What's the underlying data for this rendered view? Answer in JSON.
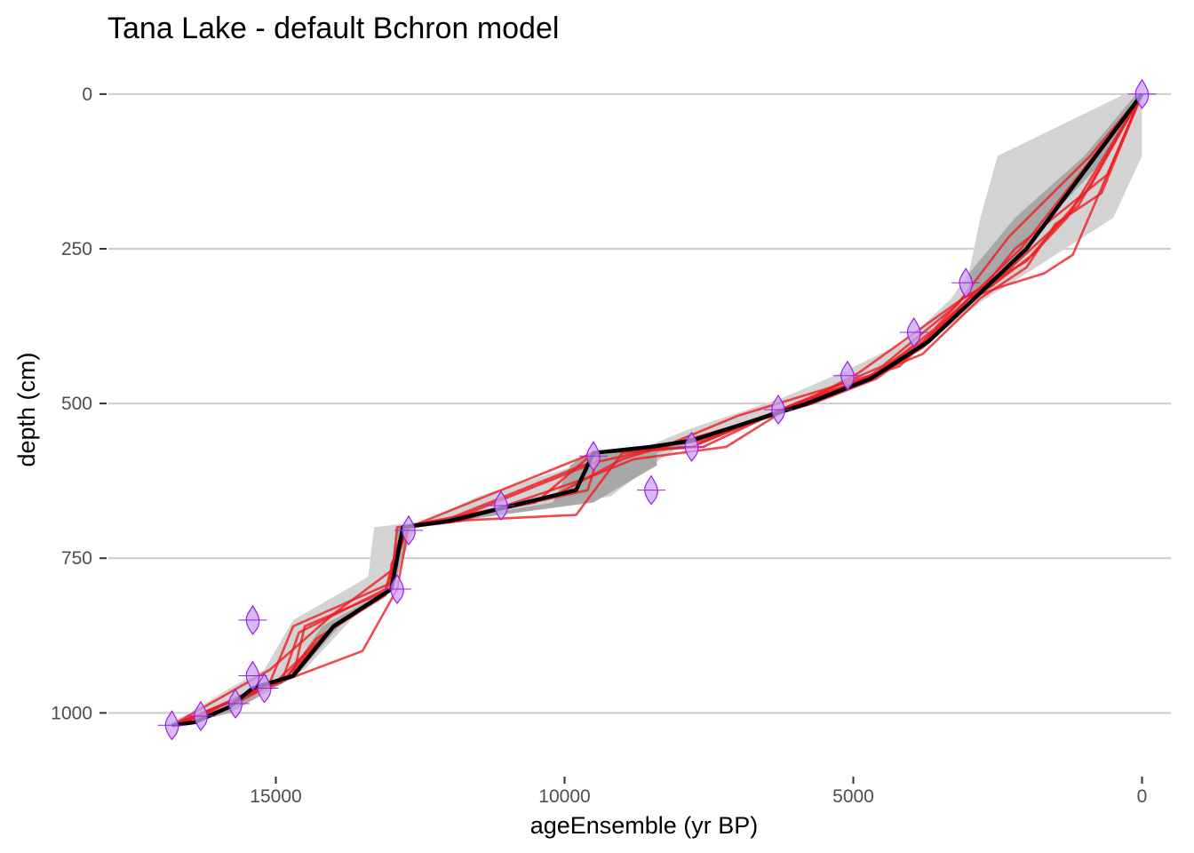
{
  "chart_data": {
    "type": "line",
    "title": "Tana Lake - default Bchron model",
    "xlabel": "ageEnsemble (yr BP)",
    "ylabel": "depth (cm)",
    "x_reversed": true,
    "y_reversed": true,
    "xlim": [
      17900,
      -500
    ],
    "ylim": [
      1100,
      -40
    ],
    "x_ticks": [
      15000,
      10000,
      5000,
      0
    ],
    "y_ticks": [
      0,
      250,
      500,
      750,
      1000
    ],
    "x_tick_labels": [
      "15000",
      "10000",
      "5000",
      "0"
    ],
    "y_tick_labels": [
      "0",
      "250",
      "500",
      "750",
      "1000"
    ],
    "grid": "horizontal major lines",
    "colors": {
      "outer_band": "#d3d3d3",
      "inner_band": "#a8a8a8",
      "median": "#000000",
      "ensemble": "#ee1c22",
      "calibrated_dates_fill": "#c9a2f2",
      "calibrated_dates_line": "#9a1ee6",
      "grid": "#cccccc",
      "tick_label": "#4d4d4d"
    },
    "median": {
      "depth": [
        0,
        100,
        250,
        330,
        400,
        460,
        500,
        560,
        570,
        580,
        640,
        690,
        700,
        800,
        860,
        940,
        960,
        990,
        1015,
        1020
      ],
      "age": [
        0,
        800,
        2000,
        2900,
        3700,
        4700,
        5800,
        7800,
        8500,
        9500,
        9800,
        12000,
        12800,
        13000,
        14000,
        14700,
        15400,
        15800,
        16400,
        16800
      ]
    },
    "range_95": {
      "depth": [
        0,
        100,
        200,
        290,
        330,
        400,
        450,
        490,
        540,
        570,
        600,
        650,
        690,
        700,
        780,
        850,
        930,
        960,
        1000,
        1020
      ],
      "age_young": [
        0,
        0,
        500,
        2000,
        2700,
        3700,
        4700,
        5800,
        7000,
        8000,
        8500,
        9200,
        11800,
        12600,
        12900,
        13700,
        14500,
        15100,
        15800,
        16600
      ],
      "age_old": [
        300,
        2500,
        2800,
        3000,
        3300,
        4100,
        5200,
        6200,
        7800,
        8600,
        9800,
        11500,
        12400,
        13300,
        13400,
        14700,
        15200,
        15800,
        16500,
        16900
      ]
    },
    "range_50": {
      "depth": [
        0,
        100,
        200,
        290,
        330,
        400,
        460,
        500,
        560,
        580,
        600,
        660,
        690,
        700,
        800,
        860,
        940,
        1000,
        1020
      ],
      "age_young": [
        0,
        600,
        1600,
        2300,
        2850,
        3650,
        4650,
        5700,
        7600,
        8400,
        8400,
        9500,
        11900,
        12700,
        12950,
        13900,
        14650,
        15800,
        16700
      ],
      "age_old": [
        100,
        1000,
        2200,
        3000,
        3000,
        3800,
        4800,
        5900,
        7900,
        9600,
        9900,
        10200,
        12100,
        12900,
        13050,
        14200,
        14800,
        16000,
        16800
      ]
    },
    "ensemble_series": [
      {
        "depth": [
          0,
          120,
          250,
          330,
          400,
          460,
          500,
          560,
          580,
          640,
          690,
          700,
          800,
          860,
          940,
          990,
          1020
        ],
        "age": [
          0,
          1000,
          2100,
          3000,
          3800,
          4800,
          6000,
          7600,
          9400,
          9600,
          12000,
          12800,
          13000,
          14000,
          14800,
          15800,
          16800
        ]
      },
      {
        "depth": [
          0,
          200,
          260,
          310,
          330,
          400,
          460,
          500,
          570,
          580,
          660,
          690,
          700,
          800,
          860,
          940,
          1020
        ],
        "age": [
          0,
          1300,
          1900,
          2600,
          3000,
          3700,
          4600,
          5700,
          8300,
          9500,
          10500,
          12300,
          12800,
          13000,
          14500,
          14700,
          16800
        ]
      },
      {
        "depth": [
          0,
          130,
          250,
          330,
          410,
          460,
          500,
          570,
          580,
          600,
          690,
          700,
          760,
          800,
          860,
          950,
          1020
        ],
        "age": [
          0,
          600,
          2200,
          2900,
          3800,
          4700,
          6000,
          7800,
          9500,
          9600,
          12000,
          12700,
          13000,
          13000,
          14000,
          15000,
          16700
        ]
      },
      {
        "depth": [
          0,
          150,
          270,
          330,
          380,
          460,
          510,
          570,
          580,
          680,
          690,
          700,
          790,
          860,
          950,
          1020
        ],
        "age": [
          0,
          900,
          2000,
          3100,
          3600,
          4700,
          6200,
          7800,
          9000,
          9800,
          12000,
          12900,
          13000,
          14700,
          15100,
          16700
        ]
      },
      {
        "depth": [
          0,
          260,
          290,
          310,
          330,
          440,
          520,
          570,
          590,
          650,
          690,
          700,
          810,
          880,
          940,
          1020
        ],
        "age": [
          0,
          1200,
          1700,
          2400,
          3000,
          4200,
          7000,
          8300,
          9000,
          10200,
          12200,
          12800,
          13100,
          14300,
          14800,
          16700
        ]
      },
      {
        "depth": [
          0,
          160,
          210,
          280,
          330,
          420,
          470,
          500,
          570,
          590,
          620,
          690,
          700,
          800,
          900,
          970,
          1020
        ],
        "age": [
          0,
          700,
          1500,
          2000,
          2800,
          3800,
          5100,
          6000,
          7200,
          8800,
          9600,
          11800,
          12700,
          12900,
          13500,
          15500,
          16800
        ]
      },
      {
        "depth": [
          0,
          100,
          230,
          340,
          440,
          500,
          570,
          580,
          700,
          770,
          840,
          930,
          1020
        ],
        "age": [
          0,
          900,
          2300,
          3200,
          4500,
          6000,
          7600,
          9500,
          12700,
          13000,
          14000,
          15100,
          16800
        ]
      },
      {
        "depth": [
          0,
          180,
          300,
          330,
          390,
          450,
          500,
          560,
          600,
          690,
          700,
          800,
          870,
          950,
          1020
        ],
        "age": [
          0,
          1100,
          2500,
          3100,
          4000,
          4900,
          5900,
          7800,
          9700,
          12100,
          12800,
          13100,
          14600,
          14900,
          16800
        ]
      }
    ],
    "calibrated_dates": [
      {
        "depth": 0,
        "age": 0
      },
      {
        "depth": 305,
        "age": 3050
      },
      {
        "depth": 385,
        "age": 3950
      },
      {
        "depth": 455,
        "age": 5100
      },
      {
        "depth": 510,
        "age": 6300
      },
      {
        "depth": 570,
        "age": 7800
      },
      {
        "depth": 585,
        "age": 9500
      },
      {
        "depth": 640,
        "age": 8500
      },
      {
        "depth": 665,
        "age": 11100
      },
      {
        "depth": 705,
        "age": 12700
      },
      {
        "depth": 800,
        "age": 12900
      },
      {
        "depth": 850,
        "age": 15400
      },
      {
        "depth": 940,
        "age": 15400
      },
      {
        "depth": 960,
        "age": 15200
      },
      {
        "depth": 985,
        "age": 15700
      },
      {
        "depth": 1005,
        "age": 16300
      },
      {
        "depth": 1020,
        "age": 16800
      }
    ]
  }
}
